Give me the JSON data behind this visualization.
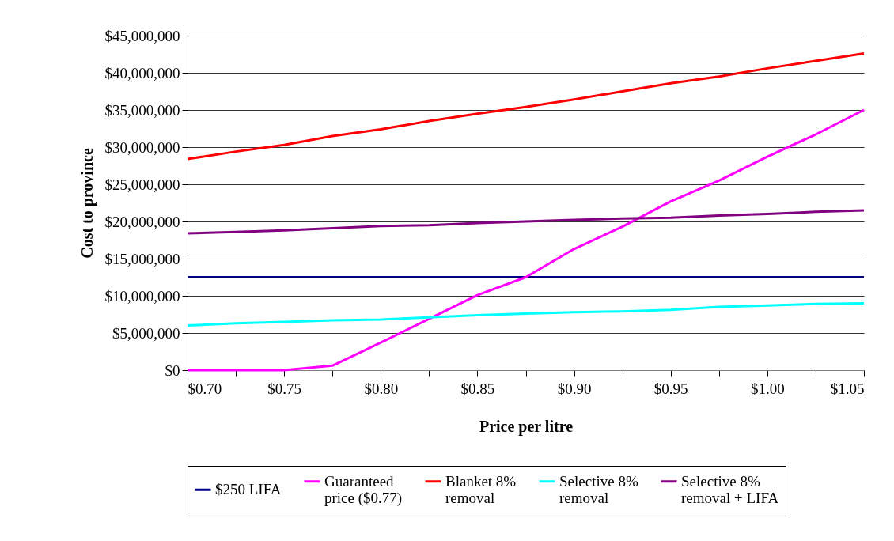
{
  "chart_data": {
    "type": "line",
    "xlabel": "Price per litre",
    "ylabel": "Cost to province",
    "x": [
      0.7,
      0.725,
      0.75,
      0.775,
      0.8,
      0.825,
      0.85,
      0.875,
      0.9,
      0.925,
      0.95,
      0.975,
      1.0,
      1.025,
      1.05
    ],
    "series": [
      {
        "name": "$250 LIFA",
        "color": "#000080",
        "values": [
          12500000,
          12500000,
          12500000,
          12500000,
          12500000,
          12500000,
          12500000,
          12500000,
          12500000,
          12500000,
          12500000,
          12500000,
          12500000,
          12500000,
          12500000
        ]
      },
      {
        "name": "Guaranteed price ($0.77)",
        "color": "#ff00ff",
        "values": [
          0,
          0,
          0,
          600000,
          3700000,
          6900000,
          10100000,
          12500000,
          16300000,
          19300000,
          22700000,
          25500000,
          28700000,
          31700000,
          35000000
        ]
      },
      {
        "name": "Blanket 8% removal",
        "color": "#ff0000",
        "values": [
          28400000,
          29400000,
          30300000,
          31500000,
          32400000,
          33500000,
          34500000,
          35400000,
          36400000,
          37500000,
          38600000,
          39500000,
          40600000,
          41600000,
          42600000
        ]
      },
      {
        "name": "Selective 8% removal",
        "color": "#00ffff",
        "values": [
          6000000,
          6300000,
          6500000,
          6700000,
          6800000,
          7100000,
          7400000,
          7600000,
          7800000,
          7900000,
          8100000,
          8500000,
          8700000,
          8900000,
          9000000
        ]
      },
      {
        "name": "Selective 8% removal + LIFA",
        "color": "#800080",
        "values": [
          18400000,
          18600000,
          18800000,
          19100000,
          19400000,
          19500000,
          19800000,
          20000000,
          20200000,
          20400000,
          20500000,
          20800000,
          21000000,
          21300000,
          21500000
        ]
      }
    ],
    "xlim": [
      0.7,
      1.05
    ],
    "xticks": [
      {
        "value": 0.7,
        "label": "$0.70"
      },
      {
        "value": 0.725,
        "label": null
      },
      {
        "value": 0.75,
        "label": "$0.75"
      },
      {
        "value": 0.775,
        "label": null
      },
      {
        "value": 0.8,
        "label": "$0.80"
      },
      {
        "value": 0.825,
        "label": null
      },
      {
        "value": 0.85,
        "label": "$0.85"
      },
      {
        "value": 0.875,
        "label": null
      },
      {
        "value": 0.9,
        "label": "$0.90"
      },
      {
        "value": 0.925,
        "label": null
      },
      {
        "value": 0.95,
        "label": "$0.95"
      },
      {
        "value": 0.975,
        "label": null
      },
      {
        "value": 1.0,
        "label": "$1.00"
      },
      {
        "value": 1.025,
        "label": null
      },
      {
        "value": 1.05,
        "label": "$1.05"
      }
    ],
    "ylim": [
      0,
      45000000
    ],
    "yticks": [
      {
        "value": 0,
        "label": "$0"
      },
      {
        "value": 5000000,
        "label": "$5,000,000"
      },
      {
        "value": 10000000,
        "label": "$10,000,000"
      },
      {
        "value": 15000000,
        "label": "$15,000,000"
      },
      {
        "value": 20000000,
        "label": "$20,000,000"
      },
      {
        "value": 25000000,
        "label": "$25,000,000"
      },
      {
        "value": 30000000,
        "label": "$30,000,000"
      },
      {
        "value": 35000000,
        "label": "$35,000,000"
      },
      {
        "value": 40000000,
        "label": "$40,000,000"
      },
      {
        "value": 45000000,
        "label": "$45,000,000"
      }
    ],
    "grid": "y",
    "legend": "bottom"
  }
}
